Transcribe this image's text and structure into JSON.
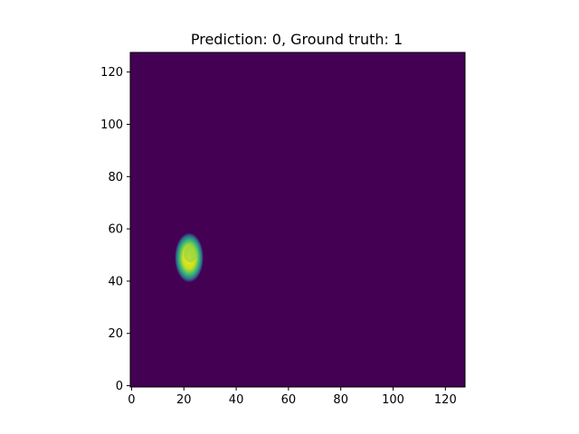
{
  "title": "Prediction: 0, Ground truth: 1",
  "chart_data": {
    "type": "heatmap",
    "title": "Prediction: 0, Ground truth: 1",
    "xlabel": "",
    "ylabel": "",
    "xlim": [
      -0.5,
      127.5
    ],
    "ylim": [
      127.5,
      -0.5
    ],
    "x_ticks": [
      0,
      20,
      40,
      60,
      80,
      100,
      120
    ],
    "y_ticks": [
      0,
      20,
      40,
      60,
      80,
      100,
      120
    ],
    "colormap": "viridis",
    "background_value": 0,
    "grid": false,
    "blobs": [
      {
        "center_x": 22,
        "center_y": 49,
        "radius_x": 5.5,
        "radius_y": 9.5,
        "peak_value": 1.0
      }
    ],
    "colors": {
      "background": "#440154",
      "low": "#31688e",
      "mid": "#35b779",
      "high": "#fde725"
    }
  }
}
